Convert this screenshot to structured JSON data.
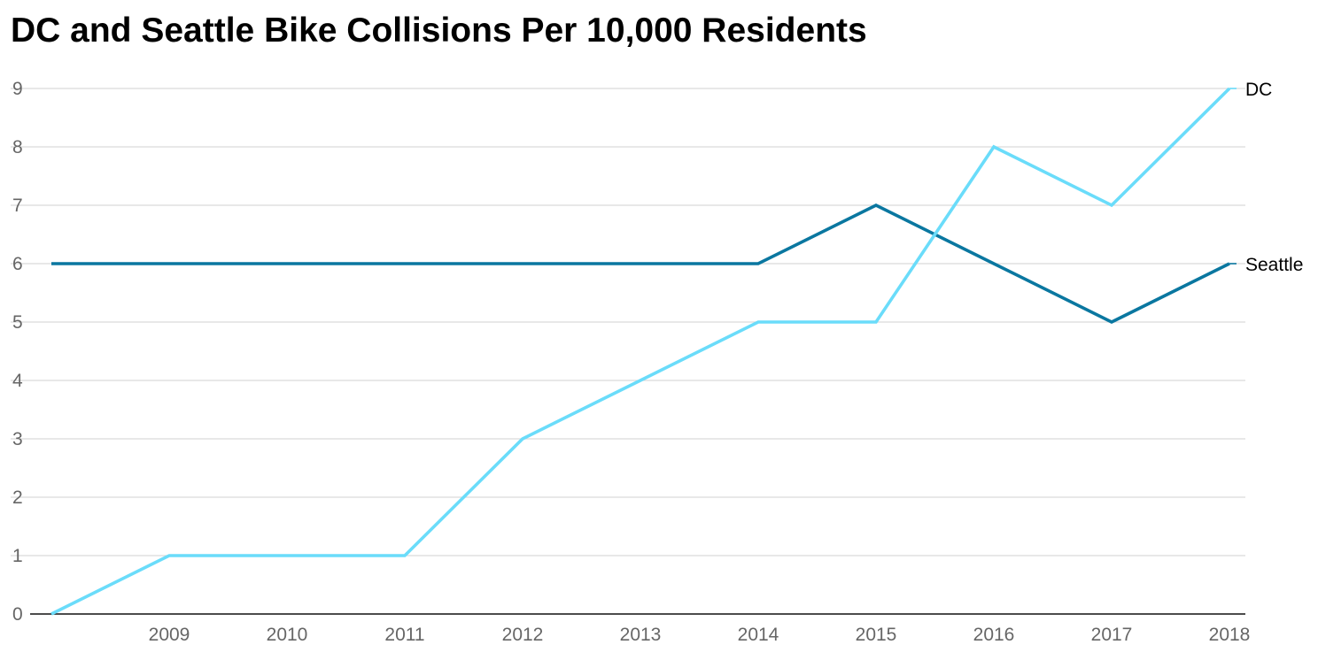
{
  "chart_data": {
    "type": "line",
    "title": "DC and Seattle Bike Collisions Per 10,000 Residents",
    "xlabel": "",
    "ylabel": "",
    "x": [
      2008,
      2009,
      2010,
      2011,
      2012,
      2013,
      2014,
      2015,
      2016,
      2017,
      2018
    ],
    "x_tick_labels": [
      "2009",
      "2010",
      "2011",
      "2012",
      "2013",
      "2014",
      "2015",
      "2016",
      "2017",
      "2018"
    ],
    "y_ticks": [
      "0",
      "1",
      "2",
      "3",
      "4",
      "5",
      "6",
      "7",
      "8",
      "9"
    ],
    "ylim": [
      0,
      9
    ],
    "grid": true,
    "legend": "direct labels at line ends",
    "series": [
      {
        "name": "Seattle",
        "color": "#0a77a0",
        "values": [
          6,
          6,
          6,
          6,
          6,
          6,
          6,
          7,
          6,
          5,
          6
        ]
      },
      {
        "name": "DC",
        "color": "#6adcfa",
        "values": [
          0,
          1,
          1,
          1,
          3,
          4,
          5,
          5,
          8,
          7,
          9
        ]
      }
    ]
  }
}
